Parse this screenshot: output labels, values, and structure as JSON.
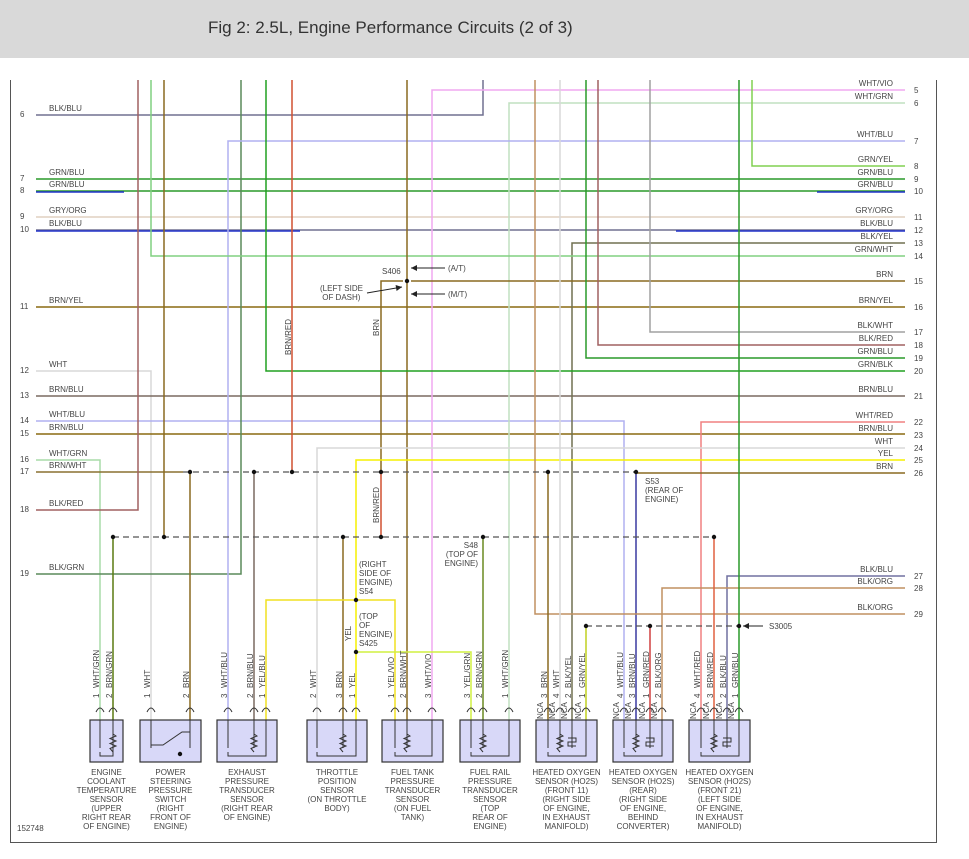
{
  "header": {
    "title": "Fig 2: 2.5L, Engine Performance Circuits (2 of 3)"
  },
  "figure_id": "152748",
  "left_rows": [
    {
      "num": "6",
      "label": "BLK/BLU"
    },
    {
      "num": "7",
      "label": "GRN/BLU"
    },
    {
      "num": "8",
      "label": "GRN/BLU"
    },
    {
      "num": "9",
      "label": "GRY/ORG"
    },
    {
      "num": "10",
      "label": "BLK/BLU"
    },
    {
      "num": "11",
      "label": "BRN/YEL"
    },
    {
      "num": "12",
      "label": "WHT"
    },
    {
      "num": "13",
      "label": "BRN/BLU"
    },
    {
      "num": "14",
      "label": "WHT/BLU"
    },
    {
      "num": "15",
      "label": "BRN/BLU"
    },
    {
      "num": "16",
      "label": "WHT/GRN"
    },
    {
      "num": "17",
      "label": "BRN/WHT"
    },
    {
      "num": "18",
      "label": "BLK/RED"
    },
    {
      "num": "19",
      "label": "BLK/GRN"
    }
  ],
  "right_rows": [
    {
      "num": "5",
      "label": "WHT/VIO"
    },
    {
      "num": "6",
      "label": "WHT/GRN"
    },
    {
      "num": "7",
      "label": "WHT/BLU"
    },
    {
      "num": "8",
      "label": "GRN/YEL"
    },
    {
      "num": "9",
      "label": "GRN/BLU"
    },
    {
      "num": "10",
      "label": "GRN/BLU"
    },
    {
      "num": "11",
      "label": "GRY/ORG"
    },
    {
      "num": "12",
      "label": "BLK/BLU"
    },
    {
      "num": "13",
      "label": "BLK/YEL"
    },
    {
      "num": "14",
      "label": "GRN/WHT"
    },
    {
      "num": "15",
      "label": "BRN"
    },
    {
      "num": "16",
      "label": "BRN/YEL"
    },
    {
      "num": "17",
      "label": "BLK/WHT"
    },
    {
      "num": "18",
      "label": "BLK/RED"
    },
    {
      "num": "19",
      "label": "GRN/BLU"
    },
    {
      "num": "20",
      "label": "GRN/BLK"
    },
    {
      "num": "21",
      "label": "BRN/BLU"
    },
    {
      "num": "22",
      "label": "WHT/RED"
    },
    {
      "num": "23",
      "label": "BRN/BLU"
    },
    {
      "num": "24",
      "label": "WHT"
    },
    {
      "num": "25",
      "label": "YEL"
    },
    {
      "num": "26",
      "label": "BRN"
    },
    {
      "num": "27",
      "label": "BLK/BLU"
    },
    {
      "num": "28",
      "label": "BLK/ORG"
    },
    {
      "num": "29",
      "label": "BLK/ORG"
    }
  ],
  "annotations": {
    "s406": "S406",
    "at": "(A/T)",
    "mt": "(M/T)",
    "left_dash": "(LEFT SIDE\n OF DASH)",
    "brn_red_1": "BRN/RED",
    "brn": "BRN",
    "brn_red_2": "BRN/RED",
    "s53": "S53\n(REAR OF\nENGINE)",
    "s48": "S48\n(TOP OF\nENGINE)",
    "s54": "(RIGHT\nSIDE OF\nENGINE)\nS54",
    "s425": "(TOP\nOF\nENGINE)\nS425",
    "yel": "YEL",
    "s3005": "S3005"
  },
  "nca": "NCA",
  "sensors": [
    {
      "name": "ENGINE\nCOOLANT\nTEMPERATURE\nSENSOR\n(UPPER\nRIGHT REAR\nOF ENGINE)",
      "pins": [
        {
          "n": "1",
          "wire": "WHT/GRN"
        },
        {
          "n": "2",
          "wire": "BRN/GRN"
        }
      ]
    },
    {
      "name": "POWER\nSTEERING\nPRESSURE\nSWITCH\n(RIGHT\nFRONT OF\nENGINE)",
      "pins": [
        {
          "n": "1",
          "wire": "WHT"
        },
        {
          "n": "2",
          "wire": "BRN"
        }
      ]
    },
    {
      "name": "EXHAUST\nPRESSURE\nTRANSDUCER\nSENSOR\n(RIGHT REAR\nOF ENGINE)",
      "pins": [
        {
          "n": "3",
          "wire": "WHT/BLU"
        },
        {
          "n": "2",
          "wire": "BRN/BLU"
        },
        {
          "n": "1",
          "wire": "YEL/BLU"
        }
      ]
    },
    {
      "name": "THROTTLE\nPOSITION\nSENSOR\n(ON THROTTLE\nBODY)",
      "pins": [
        {
          "n": "2",
          "wire": "WHT"
        },
        {
          "n": "3",
          "wire": "BRN"
        },
        {
          "n": "1",
          "wire": "YEL"
        }
      ]
    },
    {
      "name": "FUEL TANK\nPRESSURE\nTRANSDUCER\nSENSOR\n(ON FUEL\nTANK)",
      "pins": [
        {
          "n": "1",
          "wire": "YEL/VIO"
        },
        {
          "n": "2",
          "wire": "BRN/WHT"
        },
        {
          "n": "3",
          "wire": "WHT/VIO"
        }
      ]
    },
    {
      "name": "FUEL RAIL\nPRESSURE\nTRANSDUCER\nSENSOR\n(TOP\nREAR OF\nENGINE)",
      "pins": [
        {
          "n": "3",
          "wire": "YEL/GRN"
        },
        {
          "n": "2",
          "wire": "BRN/GRN"
        },
        {
          "n": "1",
          "wire": "WHT/GRN"
        }
      ]
    },
    {
      "name": "HEATED OXYGEN\nSENSOR (HO2S)\n(FRONT 11)\n(RIGHT SIDE\nOF ENGINE,\nIN EXHAUST\nMANIFOLD)",
      "pins": [
        {
          "n": "3",
          "wire": "BRN"
        },
        {
          "n": "4",
          "wire": "WHT"
        },
        {
          "n": "2",
          "wire": "BLK/YEL"
        },
        {
          "n": "1",
          "wire": "GRN/YEL"
        }
      ]
    },
    {
      "name": "HEATED OXYGEN\nSENSOR (HO2S)\n(REAR)\n(RIGHT SIDE\nOF ENGINE,\nBEHIND\nCONVERTER)",
      "pins": [
        {
          "n": "4",
          "wire": "WHT/BLU"
        },
        {
          "n": "3",
          "wire": "BRN/BLU"
        },
        {
          "n": "1",
          "wire": "GRN/RED"
        },
        {
          "n": "2",
          "wire": "BLK/ORG"
        }
      ]
    },
    {
      "name": "HEATED OXYGEN\nSENSOR (HO2S)\n(FRONT 21)\n(LEFT SIDE\nOF ENGINE,\nIN EXHAUST\nMANIFOLD)",
      "pins": [
        {
          "n": "4",
          "wire": "WHT/RED"
        },
        {
          "n": "3",
          "wire": "BRN/RED"
        },
        {
          "n": "2",
          "wire": "BLK/BLU"
        },
        {
          "n": "1",
          "wire": "GRN/BLU"
        }
      ]
    }
  ],
  "colors": {
    "header_bg": "#d9d9d9",
    "sensor_fill": "#d8d8f8",
    "splice_dash": "#555555"
  }
}
